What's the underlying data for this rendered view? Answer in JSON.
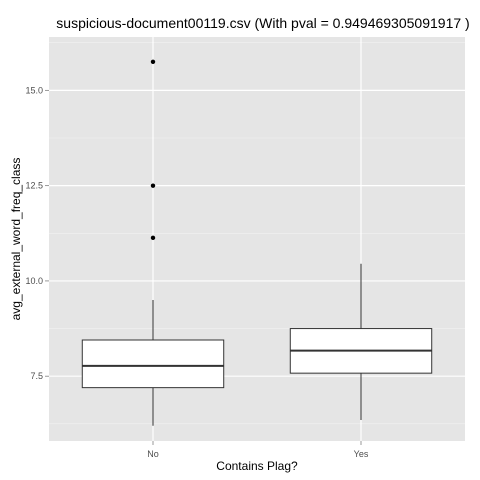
{
  "chart_data": {
    "type": "boxplot",
    "title": "suspicious-document00119.csv (With pval = 0.949469305091917 )",
    "xlabel": "Contains Plag?",
    "ylabel": "avg_external_word_freq_class",
    "categories": [
      "No",
      "Yes"
    ],
    "ylim": [
      5.8,
      16.4
    ],
    "yticks": [
      7.5,
      10.0,
      12.5,
      15.0
    ],
    "ytick_labels": [
      "7.5",
      "10.0",
      "12.5",
      "15.0"
    ],
    "grid": true,
    "boxes": [
      {
        "category": "No",
        "whisker_low": 6.2,
        "q1": 7.2,
        "median": 7.77,
        "q3": 8.45,
        "whisker_high": 9.5,
        "outliers": [
          11.13,
          12.5,
          15.75
        ]
      },
      {
        "category": "Yes",
        "whisker_low": 6.35,
        "q1": 7.58,
        "median": 8.17,
        "q3": 8.75,
        "whisker_high": 10.45,
        "outliers": []
      }
    ],
    "colors": {
      "panel": "#e5e5e5",
      "grid_major": "#ffffff",
      "grid_minor": "#f2f2f2",
      "box_fill": "#ffffff",
      "box_stroke": "#333333",
      "outlier": "#000000"
    }
  }
}
